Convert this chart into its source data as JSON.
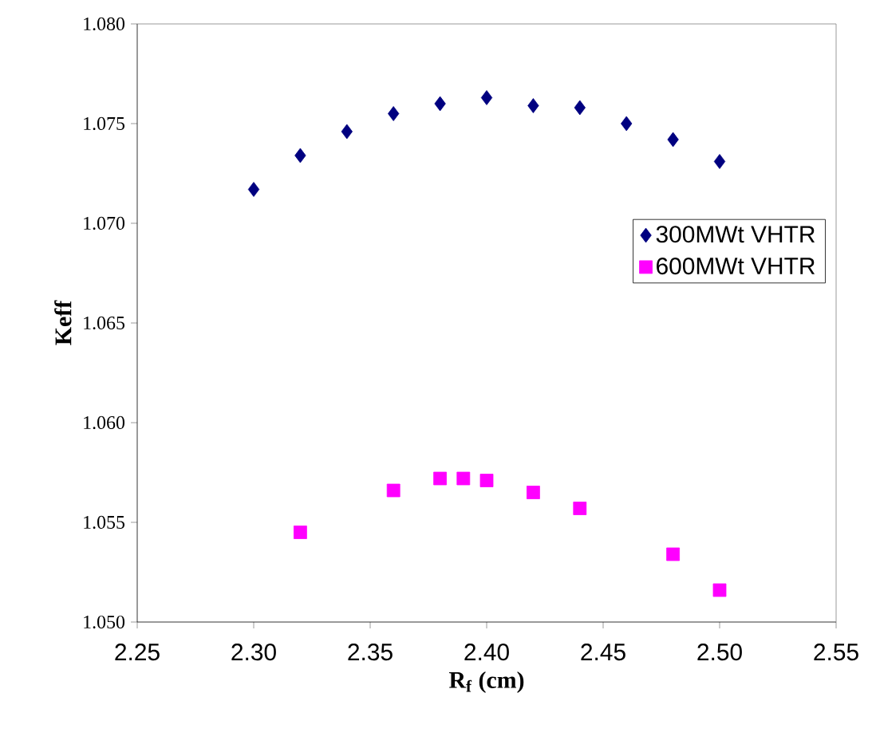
{
  "chart_data": {
    "type": "scatter",
    "xlabel": "R$_{f}$ (cm)",
    "ylabel": "Keff",
    "xlim": [
      2.25,
      2.55
    ],
    "ylim": [
      1.05,
      1.08
    ],
    "xticks": [
      {
        "value": 2.25,
        "label": "2.25"
      },
      {
        "value": 2.3,
        "label": "2.30"
      },
      {
        "value": 2.35,
        "label": "2.35"
      },
      {
        "value": 2.4,
        "label": "2.40"
      },
      {
        "value": 2.45,
        "label": "2.45"
      },
      {
        "value": 2.5,
        "label": "2.50"
      },
      {
        "value": 2.55,
        "label": "2.55"
      }
    ],
    "yticks": [
      {
        "value": 1.05,
        "label": "1.050"
      },
      {
        "value": 1.055,
        "label": "1.055"
      },
      {
        "value": 1.06,
        "label": "1.060"
      },
      {
        "value": 1.065,
        "label": "1.065"
      },
      {
        "value": 1.07,
        "label": "1.070"
      },
      {
        "value": 1.075,
        "label": "1.075"
      },
      {
        "value": 1.08,
        "label": "1.080"
      }
    ],
    "grid": false,
    "legend": "right",
    "series": [
      {
        "name": "300MWt VHTR",
        "color": "#000080",
        "marker": "diamond",
        "x": [
          2.3,
          2.32,
          2.34,
          2.36,
          2.38,
          2.4,
          2.42,
          2.44,
          2.46,
          2.48,
          2.5
        ],
        "values": [
          1.0717,
          1.0734,
          1.0746,
          1.0755,
          1.076,
          1.0763,
          1.0759,
          1.0758,
          1.075,
          1.0742,
          1.0731
        ]
      },
      {
        "name": "600MWt VHTR",
        "color": "#ff00ff",
        "marker": "square",
        "x": [
          2.32,
          2.36,
          2.38,
          2.39,
          2.4,
          2.42,
          2.44,
          2.48,
          2.5
        ],
        "values": [
          1.0545,
          1.0566,
          1.0572,
          1.0572,
          1.0571,
          1.0565,
          1.0557,
          1.0534,
          1.0516
        ]
      }
    ]
  }
}
